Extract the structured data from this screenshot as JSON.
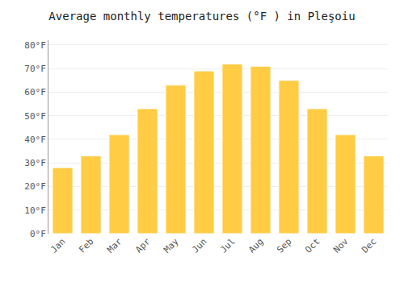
{
  "chart_data": {
    "type": "bar",
    "title": "Average monthly temperatures (°F ) in Pleşoiu",
    "categories": [
      "Jan",
      "Feb",
      "Mar",
      "Apr",
      "May",
      "Jun",
      "Jul",
      "Aug",
      "Sep",
      "Oct",
      "Nov",
      "Dec"
    ],
    "values": [
      28,
      33,
      42,
      53,
      63,
      69,
      72,
      71,
      65,
      53,
      42,
      33
    ],
    "color": "#FFCC44",
    "ylim": [
      0,
      82
    ],
    "yticks": [
      {
        "value": 0,
        "label": "0°F"
      },
      {
        "value": 10,
        "label": "10°F"
      },
      {
        "value": 20,
        "label": "20°F"
      },
      {
        "value": 30,
        "label": "30°F"
      },
      {
        "value": 40,
        "label": "40°F"
      },
      {
        "value": 50,
        "label": "50°F"
      },
      {
        "value": 60,
        "label": "60°F"
      },
      {
        "value": 70,
        "label": "70°F"
      },
      {
        "value": 80,
        "label": "80°F"
      }
    ],
    "grid": true
  }
}
